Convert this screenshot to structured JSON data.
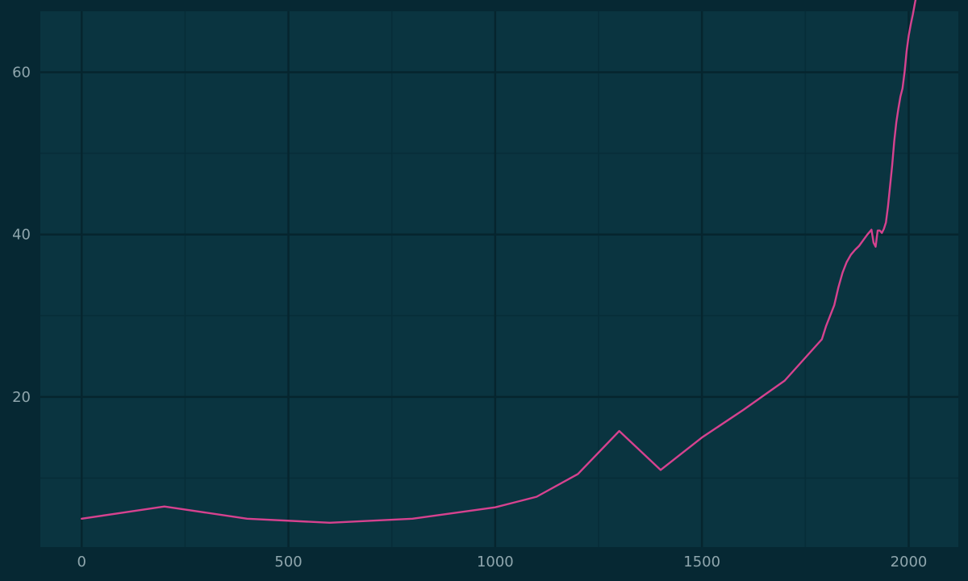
{
  "chart_data": {
    "type": "line",
    "title": "",
    "xlabel": "",
    "ylabel": "",
    "xlim": [
      -100,
      2120
    ],
    "ylim": [
      1.5,
      67.5
    ],
    "x_ticks": [
      0,
      500,
      1000,
      1500,
      2000
    ],
    "x_tick_labels": [
      "0",
      "500",
      "1000",
      "1500",
      "2000"
    ],
    "y_ticks": [
      20,
      40,
      60
    ],
    "y_tick_labels": [
      "20",
      "40",
      "60"
    ],
    "grid": true,
    "legend": "none",
    "series": [
      {
        "color": "#d6428f",
        "x": [
          0,
          200,
          400,
          600,
          800,
          1000,
          1100,
          1200,
          1300,
          1400,
          1500,
          1600,
          1700,
          1790,
          1800,
          1820,
          1830,
          1840,
          1850,
          1860,
          1870,
          1880,
          1890,
          1900,
          1910,
          1915,
          1920,
          1925,
          1930,
          1935,
          1940,
          1945,
          1950,
          1955,
          1960,
          1965,
          1970,
          1975,
          1980,
          1985,
          1990,
          1995,
          2000,
          2005,
          2010,
          2015,
          2020
        ],
        "values": [
          5,
          6.5,
          5,
          4.5,
          5,
          6.4,
          7.7,
          10.5,
          15.8,
          11,
          15,
          18.4,
          22,
          27.1,
          28.7,
          31.3,
          33.5,
          35.3,
          36.6,
          37.5,
          38.1,
          38.6,
          39.3,
          40,
          40.6,
          39,
          38.5,
          40.5,
          40.5,
          40.2,
          40.7,
          41.5,
          43.5,
          46,
          48.5,
          51.5,
          53.8,
          55.5,
          57,
          58,
          60,
          62.6,
          64.5,
          65.9,
          67.1,
          68.5,
          69.8
        ]
      }
    ]
  },
  "colors": {
    "background": "#062833",
    "plot_background": "#0a3440",
    "grid_major": "#06252e",
    "grid_minor": "#072d38",
    "line": "#d6428f",
    "tick_text": "#8fa6ad"
  }
}
